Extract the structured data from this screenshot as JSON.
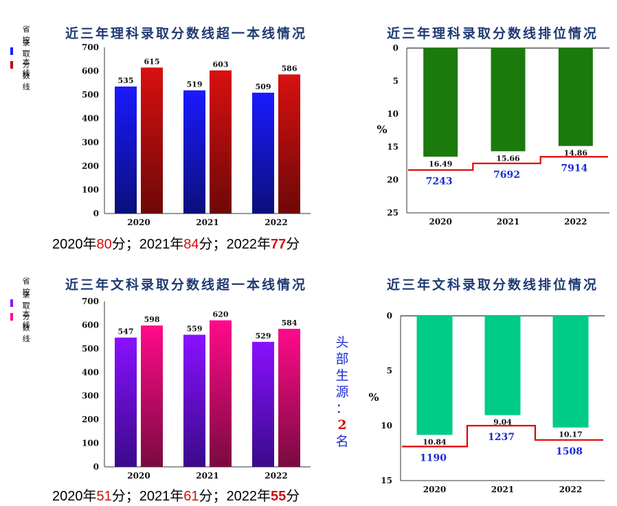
{
  "charts": [
    {
      "title": "近三年理科录取分数线超一本线情况",
      "type": "bar",
      "categories": [
        "2020",
        "2021",
        "2022"
      ],
      "series": [
        {
          "name": "省控一本线",
          "values": [
            535,
            519,
            509
          ],
          "color_top": "#1a1aff",
          "color_bottom": "#0b0f7a"
        },
        {
          "name": "录取分数线",
          "values": [
            615,
            603,
            586
          ],
          "color_top": "#d81010",
          "color_bottom": "#6e0808"
        }
      ],
      "ylim": [
        0,
        700
      ],
      "yticks": [
        0,
        100,
        200,
        300,
        400,
        500,
        600,
        700
      ],
      "summary": {
        "parts": [
          "2020年",
          "80",
          "分；2021年",
          "84",
          "分；2022年",
          "77",
          "分"
        ]
      }
    },
    {
      "title": "近三年理科录取分数线排位情况",
      "type": "bar",
      "categories": [
        "2020",
        "2021",
        "2022"
      ],
      "values": [
        16.49,
        15.66,
        14.86
      ],
      "color": "#1a7a0c",
      "ylabel": "%",
      "ylim": [
        0,
        25
      ],
      "yticks": [
        0,
        5,
        10,
        15,
        20,
        25
      ],
      "ranks": [
        "7243",
        "7692",
        "7914"
      ],
      "rank_line_color": "#e00000"
    },
    {
      "title": "近三年文科录取分数线超一本线情况",
      "type": "bar",
      "categories": [
        "2020",
        "2021",
        "2022"
      ],
      "series": [
        {
          "name": "省控一本线",
          "values": [
            547,
            559,
            529
          ],
          "color_top": "#8a10ff",
          "color_bottom": "#3a0a8a"
        },
        {
          "name": "录取分数线",
          "values": [
            598,
            620,
            584
          ],
          "color_top": "#ff0a8a",
          "color_bottom": "#7a0a40"
        }
      ],
      "ylim": [
        0,
        700
      ],
      "yticks": [
        0,
        100,
        200,
        300,
        400,
        500,
        600,
        700
      ],
      "summary": {
        "parts": [
          "2020年",
          "51",
          "分；2021年",
          "61",
          "分；2022年",
          "55",
          "分"
        ]
      }
    },
    {
      "title": "近三年文科录取分数线排位情况",
      "type": "bar",
      "categories": [
        "2020",
        "2021",
        "2022"
      ],
      "values": [
        10.84,
        9.04,
        10.17
      ],
      "color": "#00cc88",
      "ylabel": "%",
      "ylim": [
        0,
        15
      ],
      "yticks": [
        0,
        5,
        10,
        15
      ],
      "ranks": [
        "1190",
        "1237",
        "1508"
      ],
      "rank_line_color": "#e00000"
    }
  ],
  "side_note": {
    "chars": [
      "头",
      "部",
      "生",
      "源",
      "：",
      "2",
      "名"
    ]
  }
}
